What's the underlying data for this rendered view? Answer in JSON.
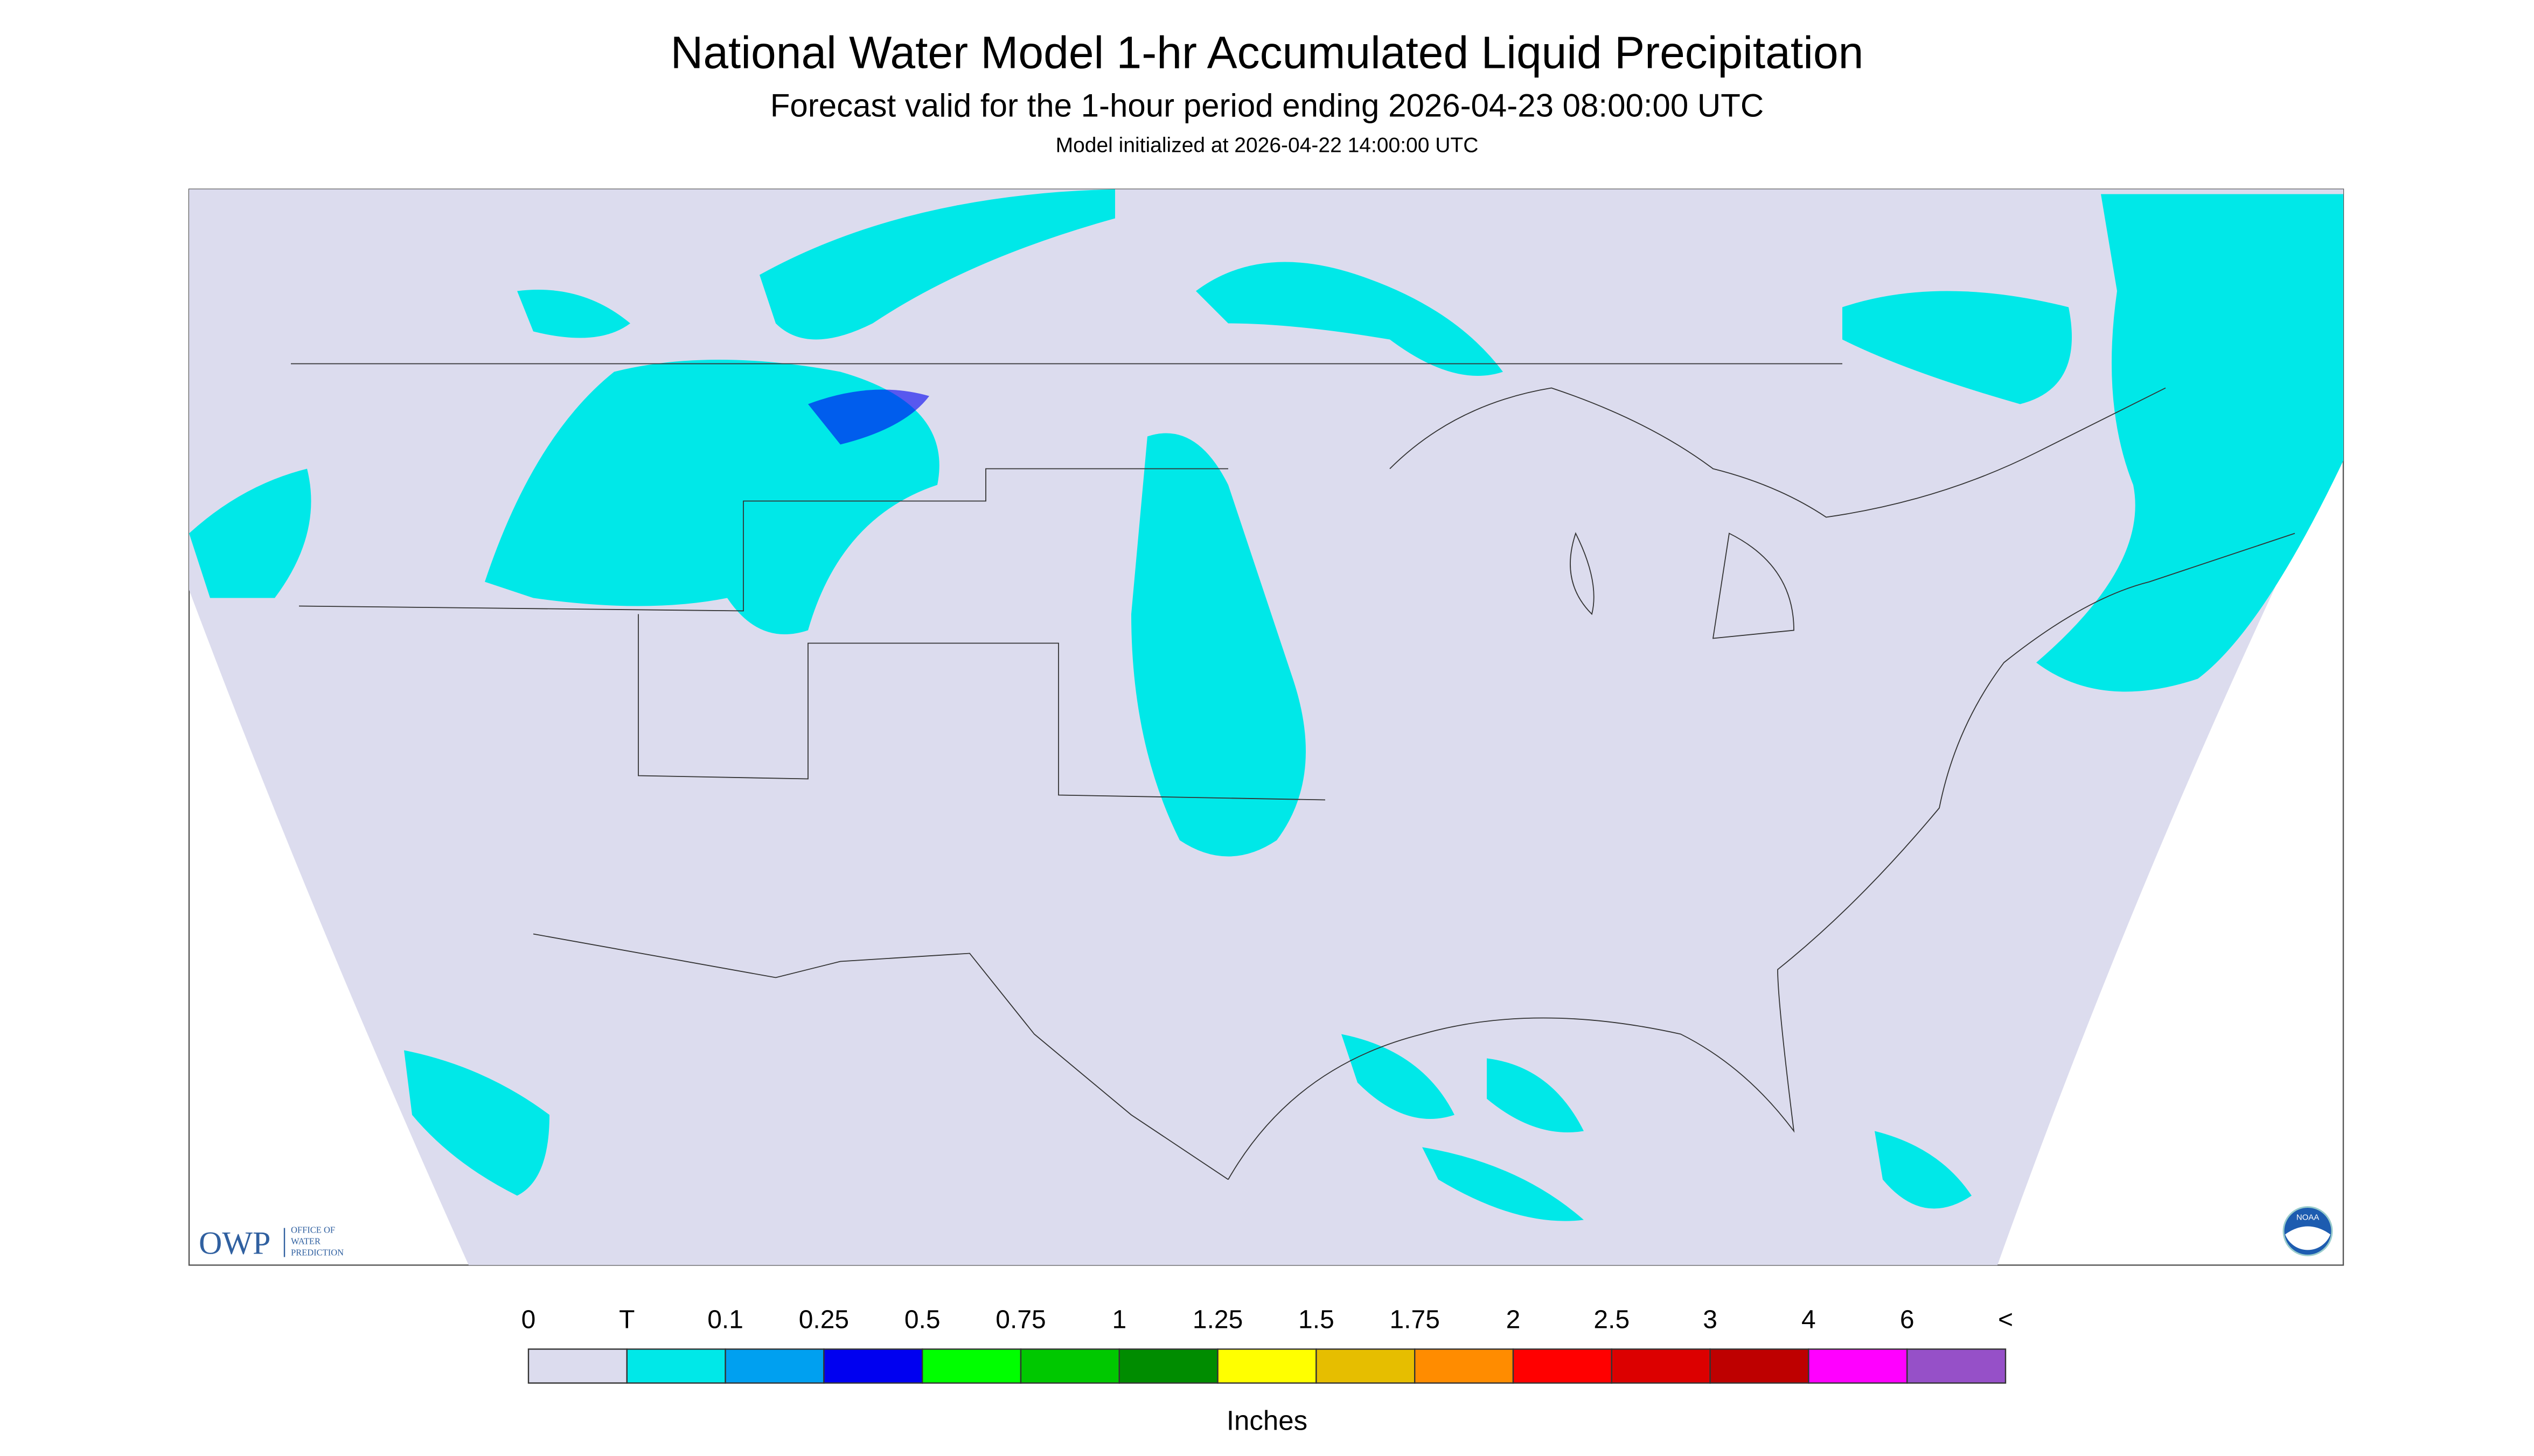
{
  "header": {
    "title": "National Water Model 1-hr Accumulated Liquid Precipitation",
    "subtitle": "Forecast valid for the 1-hour period ending 2026-04-23 08:00:00 UTC",
    "initialized": "Model initialized at 2026-04-22 14:00:00 UTC"
  },
  "logos": {
    "owp": "OWP",
    "owp_name": [
      "OFFICE OF",
      "WATER",
      "PREDICTION"
    ],
    "noaa": "NOAA"
  },
  "legend": {
    "ticks": [
      "0",
      "T",
      "0.1",
      "0.25",
      "0.5",
      "0.75",
      "1",
      "1.25",
      "1.5",
      "1.75",
      "2",
      "2.5",
      "3",
      "4",
      "6",
      "<"
    ],
    "colors": [
      "#dcdcee",
      "#00e8e8",
      "#00a0f0",
      "#0000f0",
      "#00ff00",
      "#00c800",
      "#008c00",
      "#ffff00",
      "#e6be00",
      "#ff8c00",
      "#ff0000",
      "#dc0000",
      "#be0000",
      "#ff00ff",
      "#9650c8"
    ],
    "unit": "Inches"
  }
}
